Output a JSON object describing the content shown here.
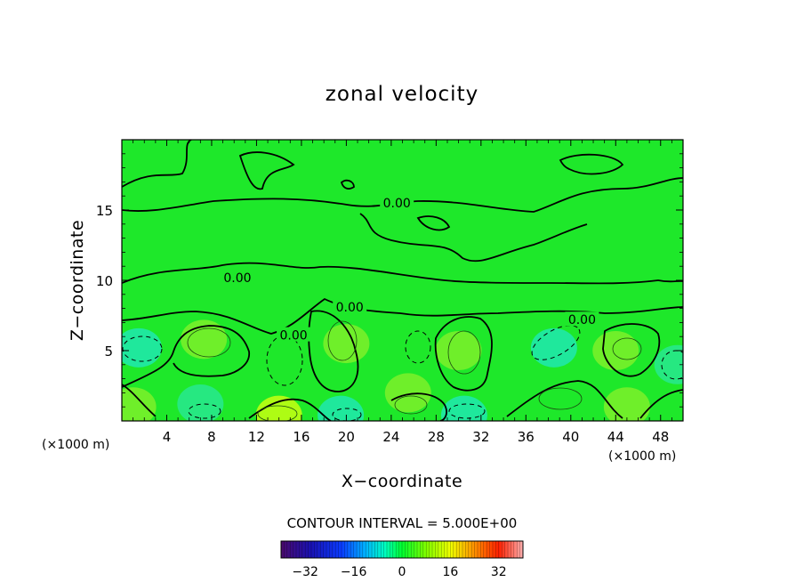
{
  "chart_data": {
    "type": "heatmap",
    "title": "zonal velocity",
    "xlabel": "X−coordinate",
    "ylabel": "Z−coordinate",
    "x_unit": "(×1000 m)",
    "z_unit": "(×1000 m)",
    "xlim": [
      0,
      50
    ],
    "ylim": [
      0,
      20
    ],
    "x_ticks": [
      "4",
      "8",
      "12",
      "16",
      "20",
      "24",
      "28",
      "32",
      "36",
      "40",
      "44",
      "48"
    ],
    "x_tick_values": [
      4,
      8,
      12,
      16,
      20,
      24,
      28,
      32,
      36,
      40,
      44,
      48
    ],
    "y_ticks": [
      "5",
      "10",
      "15"
    ],
    "y_tick_values": [
      5,
      10,
      15
    ],
    "contour_interval_text": "CONTOUR INTERVAL = 5.000E+00",
    "contour_labels": [
      {
        "text": "0.00",
        "x": 24.5,
        "z": 15.5
      },
      {
        "text": "0.00",
        "x": 10.3,
        "z": 10.2
      },
      {
        "text": "0.00",
        "x": 20.3,
        "z": 8.1
      },
      {
        "text": "0.00",
        "x": 15.3,
        "z": 6.1
      },
      {
        "text": "0.00",
        "x": 41.0,
        "z": 7.2
      }
    ],
    "colorbar": {
      "range": [
        -40,
        40
      ],
      "tick_labels": [
        "−32",
        "−16",
        "0",
        "16",
        "32"
      ],
      "tick_values": [
        -32,
        -16,
        0,
        16,
        32
      ]
    },
    "field_features": [
      {
        "x": 1.5,
        "z": 5.2,
        "value": -12
      },
      {
        "x": 7.3,
        "z": 5.8,
        "value": 8
      },
      {
        "x": 14.0,
        "z": 0.4,
        "value": 14
      },
      {
        "x": 20.0,
        "z": 5.5,
        "value": 7
      },
      {
        "x": 19.5,
        "z": 0.4,
        "value": -10
      },
      {
        "x": 30.0,
        "z": 5.0,
        "value": 8
      },
      {
        "x": 30.5,
        "z": 0.4,
        "value": -10
      },
      {
        "x": 38.5,
        "z": 5.2,
        "value": -10
      },
      {
        "x": 44.0,
        "z": 5.0,
        "value": 6
      },
      {
        "x": 45.0,
        "z": 1.0,
        "value": 7
      },
      {
        "x": 49.5,
        "z": 4.0,
        "value": -8
      },
      {
        "x": 25.5,
        "z": 2.0,
        "value": 8
      },
      {
        "x": 7.0,
        "z": 1.2,
        "value": -8
      },
      {
        "x": 1.0,
        "z": 1.0,
        "value": 6
      }
    ]
  }
}
